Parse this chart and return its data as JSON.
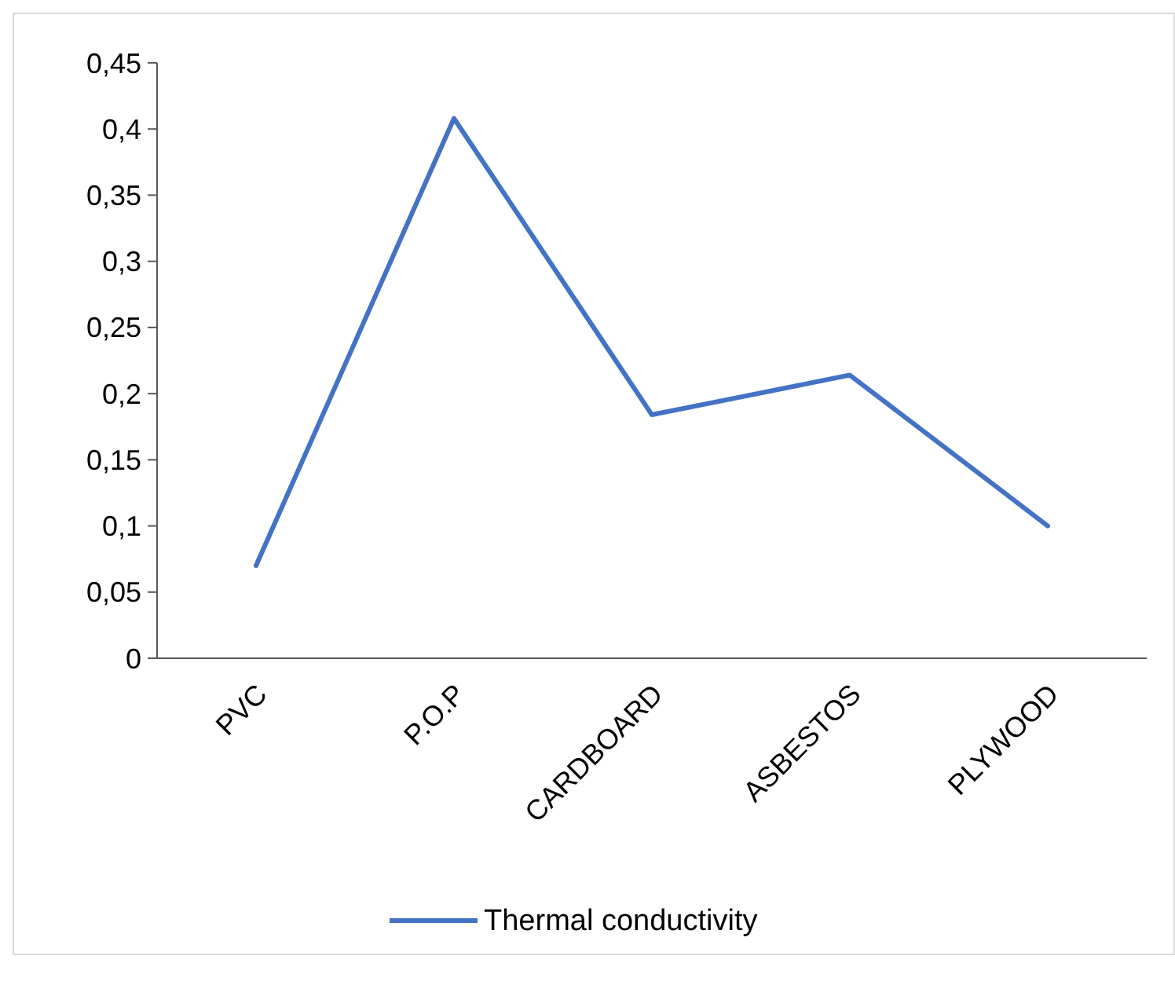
{
  "chart_data": {
    "type": "line",
    "categories": [
      "PVC",
      "P.O.P",
      "CARDBOARD",
      "ASBESTOS",
      "PLYWOOD"
    ],
    "series": [
      {
        "name": "Thermal conductivity",
        "color": "#4472c4",
        "values": [
          0.07,
          0.408,
          0.184,
          0.214,
          0.1
        ]
      }
    ],
    "ylim": [
      0,
      0.45
    ],
    "yticks": [
      0,
      {
        "value": 0.05,
        "label": "0,05"
      },
      {
        "value": 0.1,
        "label": "0,1"
      },
      {
        "value": 0.15,
        "label": "0,15"
      },
      {
        "value": 0.2,
        "label": "0,2"
      },
      {
        "value": 0.25,
        "label": "0,25"
      },
      {
        "value": 0.3,
        "label": "0,3"
      },
      {
        "value": 0.35,
        "label": "0,35"
      },
      {
        "value": 0.4,
        "label": "0,4"
      },
      {
        "value": 0.45,
        "label": "0,45"
      }
    ],
    "grid": false,
    "legend": "bottom",
    "marker": "none",
    "line_style": "solid"
  }
}
